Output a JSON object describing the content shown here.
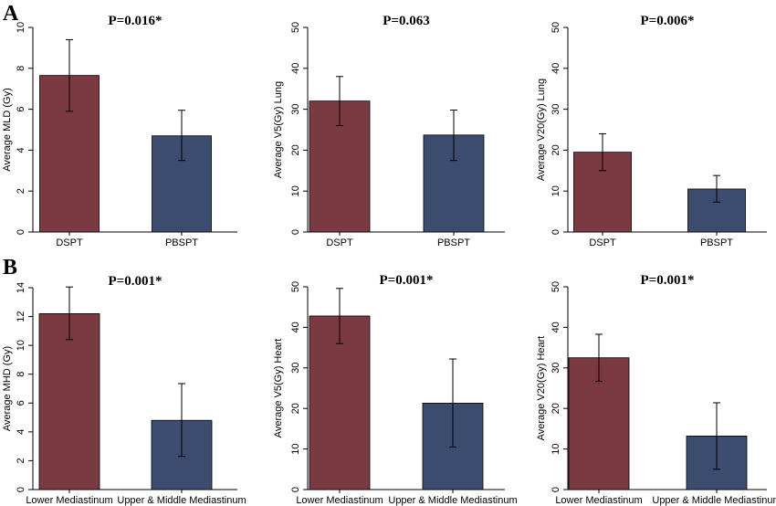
{
  "panel_labels": [
    "A",
    "B"
  ],
  "colors": {
    "bar_1": "#7b3a41",
    "bar_2": "#3c4c6e",
    "axis": "#000000",
    "error_bar": "#000000"
  },
  "chart_data": [
    {
      "type": "bar",
      "panel": "A",
      "title": "P=0.016*",
      "ylabel": "Average MLD (Gy)",
      "categories": [
        "DSPT",
        "PBSPT"
      ],
      "values": [
        7.65,
        4.7
      ],
      "error_low": [
        5.9,
        3.5
      ],
      "error_high": [
        9.4,
        5.95
      ],
      "ylim": [
        0,
        10
      ],
      "yticks": [
        0,
        2,
        4,
        6,
        8,
        10
      ],
      "grid": false
    },
    {
      "type": "bar",
      "panel": "A",
      "title": "P=0.063",
      "ylabel": "Average V5(Gy) Lung",
      "categories": [
        "DSPT",
        "PBSPT"
      ],
      "values": [
        32,
        23.7
      ],
      "error_low": [
        26,
        17.5
      ],
      "error_high": [
        38,
        29.8
      ],
      "ylim": [
        0,
        50
      ],
      "yticks": [
        0,
        10,
        20,
        30,
        40,
        50
      ],
      "grid": false
    },
    {
      "type": "bar",
      "panel": "A",
      "title": "P=0.006*",
      "ylabel": "Average V20(Gy) Lung",
      "categories": [
        "DSPT",
        "PBSPT"
      ],
      "values": [
        19.5,
        10.5
      ],
      "error_low": [
        15,
        7.3
      ],
      "error_high": [
        24,
        13.8
      ],
      "ylim": [
        0,
        50
      ],
      "yticks": [
        0,
        10,
        20,
        30,
        40,
        50
      ],
      "grid": false
    },
    {
      "type": "bar",
      "panel": "B",
      "title": "P=0.001*",
      "ylabel": "Average MHD (Gy)",
      "categories": [
        "Lower Mediastinum",
        "Upper & Middle Mediastinum"
      ],
      "values": [
        12.2,
        4.8
      ],
      "error_low": [
        10.4,
        2.3
      ],
      "error_high": [
        14.05,
        7.35
      ],
      "ylim": [
        0,
        14
      ],
      "yticks": [
        0,
        2,
        4,
        6,
        8,
        10,
        12,
        14
      ],
      "grid": false
    },
    {
      "type": "bar",
      "panel": "B",
      "title": "P=0.001*",
      "ylabel": "Average V5(Gy) Heart",
      "categories": [
        "Lower Mediastinum",
        "Upper & Middle Mediastinum"
      ],
      "values": [
        42.8,
        21.3
      ],
      "error_low": [
        36,
        10.5
      ],
      "error_high": [
        49.6,
        32.2
      ],
      "ylim": [
        0,
        50
      ],
      "yticks": [
        0,
        10,
        20,
        30,
        40,
        50
      ],
      "grid": false
    },
    {
      "type": "bar",
      "panel": "B",
      "title": "P=0.001*",
      "ylabel": "Average V20(Gy) Heart",
      "categories": [
        "Lower Mediastinum",
        "Upper & Middle Mediastinum"
      ],
      "values": [
        32.5,
        13.2
      ],
      "error_low": [
        26.7,
        5
      ],
      "error_high": [
        38.3,
        21.4
      ],
      "ylim": [
        0,
        50
      ],
      "yticks": [
        0,
        10,
        20,
        30,
        40,
        50
      ],
      "grid": false
    }
  ]
}
